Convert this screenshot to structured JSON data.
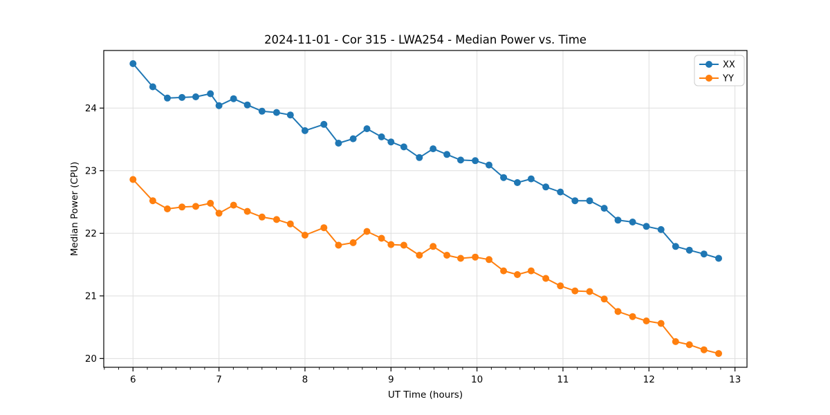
{
  "chart_data": {
    "type": "line",
    "title": "2024-11-01 - Cor 315 - LWA254 - Median Power vs. Time",
    "xlabel": "UT Time (hours)",
    "ylabel": "Median Power (CPU)",
    "xlim": [
      5.66,
      13.14
    ],
    "ylim": [
      19.86,
      24.92
    ],
    "xticks": [
      6,
      7,
      8,
      9,
      10,
      11,
      12,
      13
    ],
    "yticks": [
      20,
      21,
      22,
      23,
      24
    ],
    "x_minor_step": 0.16667,
    "grid": true,
    "grid_color": "#dedede",
    "legend_position": "upper right",
    "x": [
      6.0,
      6.23,
      6.4,
      6.57,
      6.73,
      6.9,
      7.0,
      7.17,
      7.33,
      7.5,
      7.67,
      7.83,
      8.0,
      8.22,
      8.39,
      8.56,
      8.72,
      8.89,
      9.0,
      9.15,
      9.33,
      9.49,
      9.65,
      9.81,
      9.98,
      10.14,
      10.31,
      10.47,
      10.63,
      10.8,
      10.97,
      11.14,
      11.31,
      11.48,
      11.64,
      11.81,
      11.97,
      12.14,
      12.31,
      12.47,
      12.64,
      12.81
    ],
    "series": [
      {
        "name": "XX",
        "color": "#1f77b4",
        "values": [
          24.71,
          24.34,
          24.16,
          24.17,
          24.18,
          24.23,
          24.04,
          24.15,
          24.05,
          23.95,
          23.93,
          23.89,
          23.64,
          23.74,
          23.44,
          23.51,
          23.67,
          23.54,
          23.46,
          23.38,
          23.21,
          23.35,
          23.26,
          23.17,
          23.16,
          23.09,
          22.89,
          22.81,
          22.87,
          22.74,
          22.66,
          22.52,
          22.52,
          22.4,
          22.21,
          22.18,
          22.11,
          22.06,
          21.79,
          21.73,
          21.67,
          21.6
        ]
      },
      {
        "name": "YY",
        "color": "#ff7f0e",
        "values": [
          22.86,
          22.52,
          22.39,
          22.42,
          22.43,
          22.48,
          22.32,
          22.45,
          22.35,
          22.26,
          22.22,
          22.15,
          21.97,
          22.09,
          21.81,
          21.85,
          22.03,
          21.92,
          21.82,
          21.81,
          21.65,
          21.79,
          21.65,
          21.6,
          21.62,
          21.58,
          21.4,
          21.34,
          21.4,
          21.28,
          21.16,
          21.08,
          21.07,
          20.95,
          20.75,
          20.67,
          20.6,
          20.56,
          20.27,
          20.22,
          20.14,
          20.08
        ]
      }
    ]
  }
}
